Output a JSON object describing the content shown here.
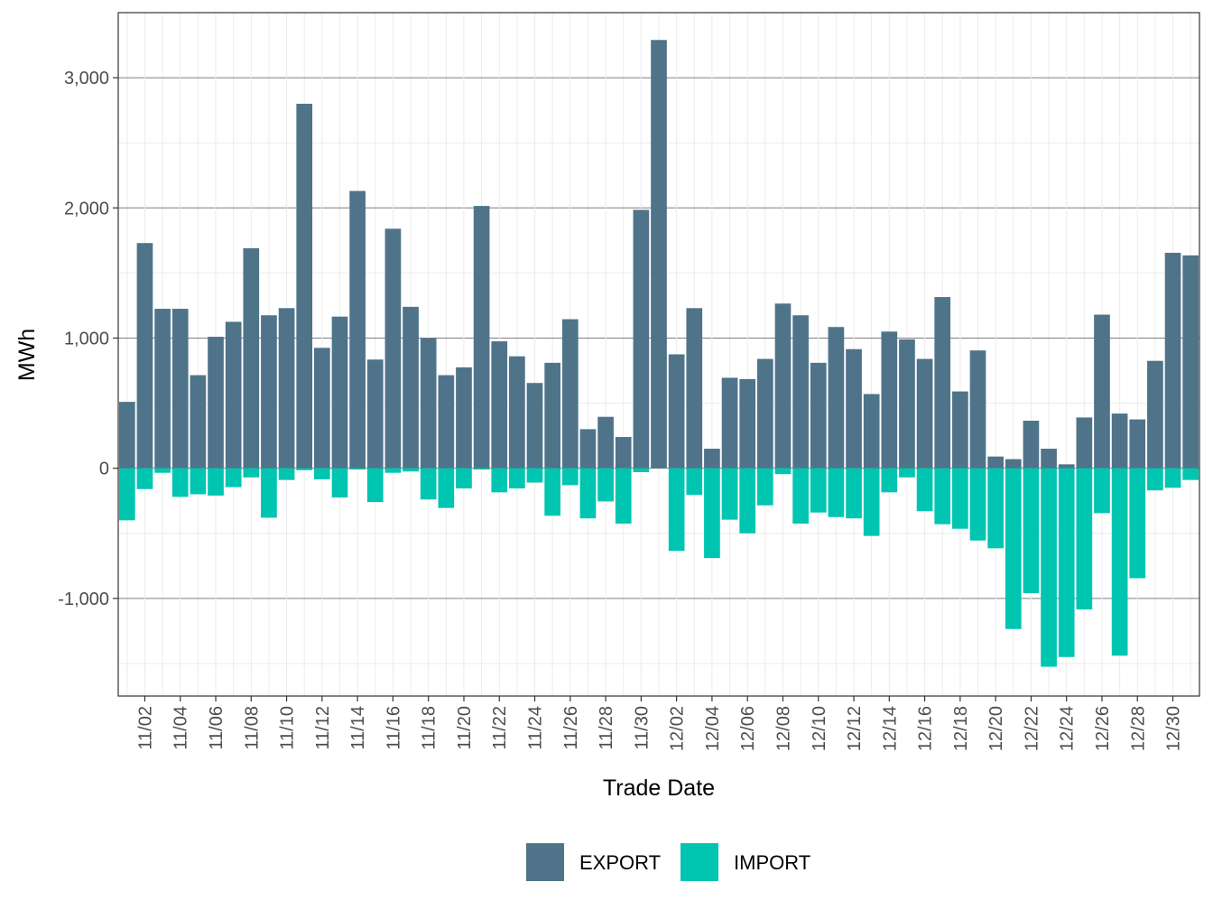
{
  "chart_data": {
    "type": "bar",
    "stacked": true,
    "xlabel": "Trade Date",
    "ylabel": "MWh",
    "ylim": [
      -1750,
      3500
    ],
    "y_ticks": [
      {
        "value": -1000,
        "label": "-1,000"
      },
      {
        "value": 0,
        "label": "0"
      },
      {
        "value": 1000,
        "label": "1,000"
      },
      {
        "value": 2000,
        "label": "2,000"
      },
      {
        "value": 3000,
        "label": "3,000"
      }
    ],
    "grid": true,
    "legend_position": "bottom",
    "x": [
      "11/01",
      "11/02",
      "11/03",
      "11/04",
      "11/05",
      "11/06",
      "11/07",
      "11/08",
      "11/09",
      "11/10",
      "11/11",
      "11/12",
      "11/13",
      "11/14",
      "11/15",
      "11/16",
      "11/17",
      "11/18",
      "11/19",
      "11/20",
      "11/21",
      "11/22",
      "11/23",
      "11/24",
      "11/25",
      "11/26",
      "11/27",
      "11/28",
      "11/29",
      "11/30",
      "12/01",
      "12/02",
      "12/03",
      "12/04",
      "12/05",
      "12/06",
      "12/07",
      "12/08",
      "12/09",
      "12/10",
      "12/11",
      "12/12",
      "12/13",
      "12/14",
      "12/15",
      "12/16",
      "12/17",
      "12/18",
      "12/19",
      "12/20",
      "12/21",
      "12/22",
      "12/23",
      "12/24",
      "12/25",
      "12/26",
      "12/27",
      "12/28",
      "12/29",
      "12/30",
      "12/31"
    ],
    "x_tick_labels": [
      "11/02",
      "11/04",
      "11/06",
      "11/08",
      "11/10",
      "11/12",
      "11/14",
      "11/16",
      "11/18",
      "11/20",
      "11/22",
      "11/24",
      "11/26",
      "11/28",
      "11/30",
      "12/02",
      "12/04",
      "12/06",
      "12/08",
      "12/10",
      "12/12",
      "12/14",
      "12/16",
      "12/18",
      "12/20",
      "12/22",
      "12/24",
      "12/26",
      "12/28",
      "12/30"
    ],
    "series": [
      {
        "name": "EXPORT",
        "color": "#4f7489",
        "values": [
          510,
          1730,
          1225,
          1225,
          715,
          1010,
          1125,
          1690,
          1175,
          1230,
          2800,
          925,
          1165,
          2130,
          835,
          1840,
          1240,
          1000,
          715,
          775,
          2015,
          975,
          860,
          655,
          810,
          1145,
          300,
          395,
          240,
          1985,
          3290,
          875,
          1230,
          150,
          695,
          685,
          840,
          1265,
          1175,
          810,
          1085,
          915,
          570,
          1050,
          990,
          840,
          1315,
          590,
          905,
          90,
          70,
          365,
          150,
          30,
          390,
          1180,
          420,
          375,
          825,
          1655,
          1635
        ]
      },
      {
        "name": "IMPORT",
        "color": "#00c5b1",
        "values": [
          -400,
          -160,
          -35,
          -220,
          -200,
          -210,
          -145,
          -70,
          -380,
          -90,
          -15,
          -85,
          -225,
          -10,
          -260,
          -35,
          -25,
          -240,
          -305,
          -155,
          -10,
          -185,
          -155,
          -110,
          -365,
          -130,
          -385,
          -255,
          -425,
          -30,
          0,
          -635,
          -205,
          -690,
          -395,
          -500,
          -285,
          -45,
          -425,
          -340,
          -375,
          -385,
          -520,
          -185,
          -70,
          -330,
          -430,
          -465,
          -555,
          -615,
          -1235,
          -960,
          -1525,
          -1450,
          -1085,
          -345,
          -1440,
          -845,
          -170,
          -150,
          -90
        ]
      }
    ]
  }
}
